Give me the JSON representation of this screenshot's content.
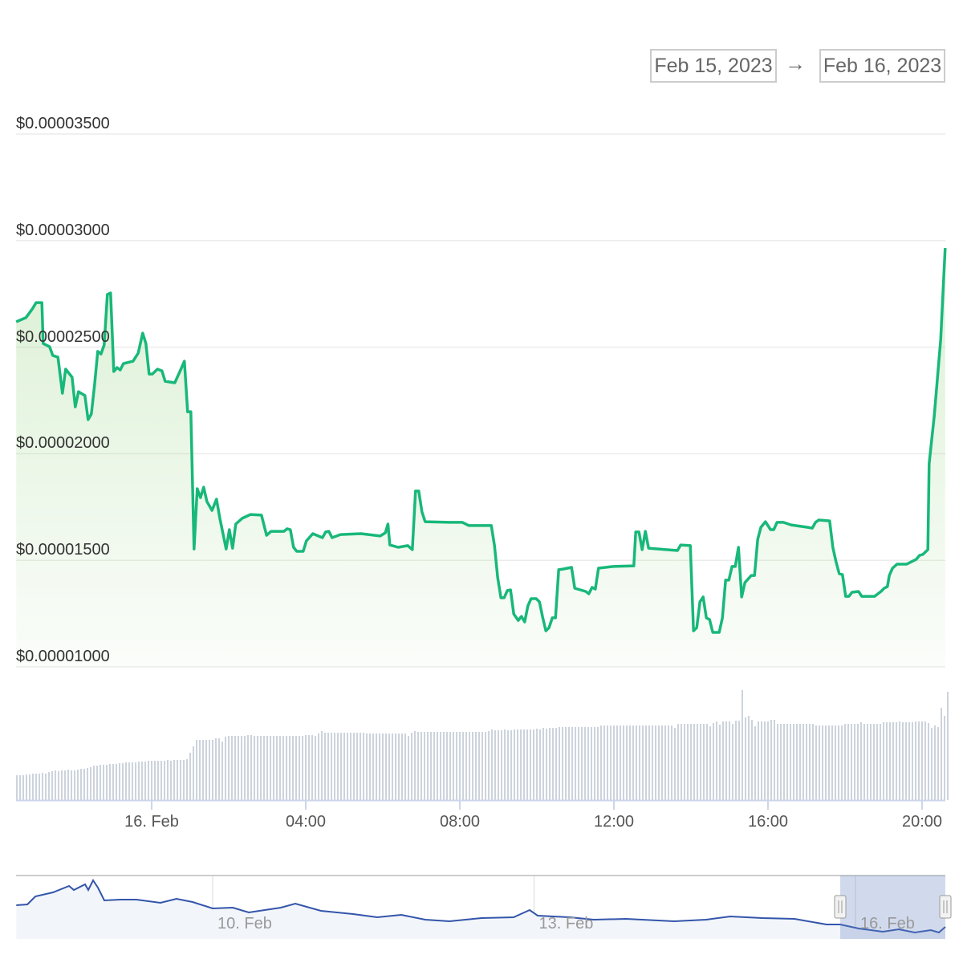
{
  "date_range": {
    "from": "Feb 15, 2023",
    "arrow": "→",
    "to": "Feb 16, 2023"
  },
  "colors": {
    "line": "#18b87a",
    "area": "#8fd07a",
    "volume": "#ccd3dc",
    "navigator_line": "#3355aa",
    "navigator_selection": "#d3d9ee"
  },
  "chart_data": {
    "type": "line",
    "y_tick_labels": [
      "$0.00001000",
      "$0.00001500",
      "$0.00002000",
      "$0.00002500",
      "$0.00003000",
      "$0.00003500"
    ],
    "y_ticks": [
      1e-05,
      1.5e-05,
      2e-05,
      2.5e-05,
      3e-05,
      3.5e-05
    ],
    "ylim": [
      1e-05,
      3.5e-05
    ],
    "x_tick_labels": [
      "16. Feb",
      "04:00",
      "08:00",
      "12:00",
      "16:00",
      "20:00"
    ],
    "x_ticks": [
      "2023-02-16T00:00",
      "2023-02-16T04:00",
      "2023-02-16T08:00",
      "2023-02-16T12:00",
      "2023-02-16T16:00",
      "2023-02-16T20:00"
    ],
    "grid": true,
    "area_fill": true,
    "price": [
      [
        "2023-02-15T20:29",
        2.619e-05
      ],
      [
        "2023-02-15T20:44",
        2.638e-05
      ],
      [
        "2023-02-15T20:54",
        2.679e-05
      ],
      [
        "2023-02-15T21:00",
        2.709e-05
      ],
      [
        "2023-02-15T21:09",
        2.709e-05
      ],
      [
        "2023-02-15T21:11",
        2.517e-05
      ],
      [
        "2023-02-15T21:21",
        2.502e-05
      ],
      [
        "2023-02-15T21:26",
        2.461e-05
      ],
      [
        "2023-02-15T21:34",
        2.453e-05
      ],
      [
        "2023-02-15T21:41",
        2.284e-05
      ],
      [
        "2023-02-15T21:46",
        2.397e-05
      ],
      [
        "2023-02-15T21:56",
        2.359e-05
      ],
      [
        "2023-02-15T22:01",
        2.22e-05
      ],
      [
        "2023-02-15T22:06",
        2.291e-05
      ],
      [
        "2023-02-15T22:16",
        2.273e-05
      ],
      [
        "2023-02-15T22:21",
        2.16e-05
      ],
      [
        "2023-02-15T22:26",
        2.186e-05
      ],
      [
        "2023-02-15T22:31",
        2.322e-05
      ],
      [
        "2023-02-15T22:36",
        2.48e-05
      ],
      [
        "2023-02-15T22:41",
        2.468e-05
      ],
      [
        "2023-02-15T22:46",
        2.51e-05
      ],
      [
        "2023-02-15T22:51",
        2.747e-05
      ],
      [
        "2023-02-15T22:56",
        2.754e-05
      ],
      [
        "2023-02-15T23:01",
        2.386e-05
      ],
      [
        "2023-02-15T23:06",
        2.404e-05
      ],
      [
        "2023-02-15T23:11",
        2.393e-05
      ],
      [
        "2023-02-15T23:16",
        2.423e-05
      ],
      [
        "2023-02-15T23:31",
        2.434e-05
      ],
      [
        "2023-02-15T23:39",
        2.472e-05
      ],
      [
        "2023-02-15T23:46",
        2.566e-05
      ],
      [
        "2023-02-15T23:51",
        2.517e-05
      ],
      [
        "2023-02-15T23:56",
        2.374e-05
      ],
      [
        "2023-02-16T00:01",
        2.374e-05
      ],
      [
        "2023-02-16T00:09",
        2.397e-05
      ],
      [
        "2023-02-16T00:16",
        2.389e-05
      ],
      [
        "2023-02-16T00:21",
        2.34e-05
      ],
      [
        "2023-02-16T00:36",
        2.333e-05
      ],
      [
        "2023-02-16T00:44",
        2.386e-05
      ],
      [
        "2023-02-16T00:51",
        2.434e-05
      ],
      [
        "2023-02-16T00:56",
        2.197e-05
      ],
      [
        "2023-02-16T01:01",
        2.197e-05
      ],
      [
        "2023-02-16T01:06",
        1.553e-05
      ],
      [
        "2023-02-16T01:11",
        1.836e-05
      ],
      [
        "2023-02-16T01:16",
        1.794e-05
      ],
      [
        "2023-02-16T01:21",
        1.843e-05
      ],
      [
        "2023-02-16T01:26",
        1.776e-05
      ],
      [
        "2023-02-16T01:34",
        1.734e-05
      ],
      [
        "2023-02-16T01:41",
        1.787e-05
      ],
      [
        "2023-02-16T01:46",
        1.7e-05
      ],
      [
        "2023-02-16T01:56",
        1.553e-05
      ],
      [
        "2023-02-16T02:01",
        1.644e-05
      ],
      [
        "2023-02-16T02:06",
        1.557e-05
      ],
      [
        "2023-02-16T02:11",
        1.67e-05
      ],
      [
        "2023-02-16T02:21",
        1.697e-05
      ],
      [
        "2023-02-16T02:34",
        1.715e-05
      ],
      [
        "2023-02-16T02:51",
        1.712e-05
      ],
      [
        "2023-02-16T02:59",
        1.617e-05
      ],
      [
        "2023-02-16T03:06",
        1.636e-05
      ],
      [
        "2023-02-16T03:26",
        1.636e-05
      ],
      [
        "2023-02-16T03:31",
        1.648e-05
      ],
      [
        "2023-02-16T03:36",
        1.644e-05
      ],
      [
        "2023-02-16T03:41",
        1.561e-05
      ],
      [
        "2023-02-16T03:46",
        1.542e-05
      ],
      [
        "2023-02-16T03:56",
        1.542e-05
      ],
      [
        "2023-02-16T04:01",
        1.591e-05
      ],
      [
        "2023-02-16T04:11",
        1.625e-05
      ],
      [
        "2023-02-16T04:26",
        1.606e-05
      ],
      [
        "2023-02-16T04:31",
        1.633e-05
      ],
      [
        "2023-02-16T04:36",
        1.636e-05
      ],
      [
        "2023-02-16T04:41",
        1.606e-05
      ],
      [
        "2023-02-16T04:54",
        1.621e-05
      ],
      [
        "2023-02-16T05:26",
        1.625e-05
      ],
      [
        "2023-02-16T05:56",
        1.614e-05
      ],
      [
        "2023-02-16T06:04",
        1.629e-05
      ],
      [
        "2023-02-16T06:08",
        1.67e-05
      ],
      [
        "2023-02-16T06:11",
        1.572e-05
      ],
      [
        "2023-02-16T06:24",
        1.561e-05
      ],
      [
        "2023-02-16T06:39",
        1.569e-05
      ],
      [
        "2023-02-16T06:46",
        1.55e-05
      ],
      [
        "2023-02-16T06:51",
        1.825e-05
      ],
      [
        "2023-02-16T06:56",
        1.825e-05
      ],
      [
        "2023-02-16T07:01",
        1.727e-05
      ],
      [
        "2023-02-16T07:06",
        1.681e-05
      ],
      [
        "2023-02-16T07:44",
        1.678e-05
      ],
      [
        "2023-02-16T08:04",
        1.678e-05
      ],
      [
        "2023-02-16T08:14",
        1.663e-05
      ],
      [
        "2023-02-16T08:49",
        1.663e-05
      ],
      [
        "2023-02-16T08:54",
        1.569e-05
      ],
      [
        "2023-02-16T08:59",
        1.418e-05
      ],
      [
        "2023-02-16T09:04",
        1.324e-05
      ],
      [
        "2023-02-16T09:09",
        1.324e-05
      ],
      [
        "2023-02-16T09:14",
        1.358e-05
      ],
      [
        "2023-02-16T09:19",
        1.361e-05
      ],
      [
        "2023-02-16T09:24",
        1.248e-05
      ],
      [
        "2023-02-16T09:31",
        1.218e-05
      ],
      [
        "2023-02-16T09:36",
        1.237e-05
      ],
      [
        "2023-02-16T09:41",
        1.211e-05
      ],
      [
        "2023-02-16T09:46",
        1.286e-05
      ],
      [
        "2023-02-16T09:51",
        1.32e-05
      ],
      [
        "2023-02-16T09:59",
        1.32e-05
      ],
      [
        "2023-02-16T10:04",
        1.305e-05
      ],
      [
        "2023-02-16T10:09",
        1.233e-05
      ],
      [
        "2023-02-16T10:14",
        1.169e-05
      ],
      [
        "2023-02-16T10:19",
        1.184e-05
      ],
      [
        "2023-02-16T10:24",
        1.23e-05
      ],
      [
        "2023-02-16T10:29",
        1.23e-05
      ],
      [
        "2023-02-16T10:34",
        1.456e-05
      ],
      [
        "2023-02-16T10:41",
        1.459e-05
      ],
      [
        "2023-02-16T10:54",
        1.467e-05
      ],
      [
        "2023-02-16T10:59",
        1.369e-05
      ],
      [
        "2023-02-16T11:16",
        1.354e-05
      ],
      [
        "2023-02-16T11:21",
        1.343e-05
      ],
      [
        "2023-02-16T11:26",
        1.373e-05
      ],
      [
        "2023-02-16T11:31",
        1.365e-05
      ],
      [
        "2023-02-16T11:36",
        1.463e-05
      ],
      [
        "2023-02-16T11:59",
        1.471e-05
      ],
      [
        "2023-02-16T12:31",
        1.474e-05
      ],
      [
        "2023-02-16T12:34",
        1.633e-05
      ],
      [
        "2023-02-16T12:39",
        1.633e-05
      ],
      [
        "2023-02-16T12:44",
        1.55e-05
      ],
      [
        "2023-02-16T12:49",
        1.636e-05
      ],
      [
        "2023-02-16T12:54",
        1.557e-05
      ],
      [
        "2023-02-16T13:21",
        1.55e-05
      ],
      [
        "2023-02-16T13:39",
        1.546e-05
      ],
      [
        "2023-02-16T13:44",
        1.572e-05
      ],
      [
        "2023-02-16T13:59",
        1.569e-05
      ],
      [
        "2023-02-16T14:04",
        1.169e-05
      ],
      [
        "2023-02-16T14:09",
        1.184e-05
      ],
      [
        "2023-02-16T14:14",
        1.305e-05
      ],
      [
        "2023-02-16T14:19",
        1.328e-05
      ],
      [
        "2023-02-16T14:24",
        1.23e-05
      ],
      [
        "2023-02-16T14:29",
        1.222e-05
      ],
      [
        "2023-02-16T14:34",
        1.162e-05
      ],
      [
        "2023-02-16T14:44",
        1.162e-05
      ],
      [
        "2023-02-16T14:49",
        1.23e-05
      ],
      [
        "2023-02-16T14:54",
        1.407e-05
      ],
      [
        "2023-02-16T14:59",
        1.407e-05
      ],
      [
        "2023-02-16T15:04",
        1.471e-05
      ],
      [
        "2023-02-16T15:09",
        1.471e-05
      ],
      [
        "2023-02-16T15:14",
        1.561e-05
      ],
      [
        "2023-02-16T15:19",
        1.328e-05
      ],
      [
        "2023-02-16T15:24",
        1.395e-05
      ],
      [
        "2023-02-16T15:34",
        1.429e-05
      ],
      [
        "2023-02-16T15:39",
        1.429e-05
      ],
      [
        "2023-02-16T15:44",
        1.599e-05
      ],
      [
        "2023-02-16T15:49",
        1.655e-05
      ],
      [
        "2023-02-16T15:56",
        1.681e-05
      ],
      [
        "2023-02-16T16:04",
        1.644e-05
      ],
      [
        "2023-02-16T16:09",
        1.644e-05
      ],
      [
        "2023-02-16T16:14",
        1.678e-05
      ],
      [
        "2023-02-16T16:24",
        1.678e-05
      ],
      [
        "2023-02-16T16:36",
        1.666e-05
      ],
      [
        "2023-02-16T17:01",
        1.655e-05
      ],
      [
        "2023-02-16T17:09",
        1.651e-05
      ],
      [
        "2023-02-16T17:14",
        1.678e-05
      ],
      [
        "2023-02-16T17:19",
        1.689e-05
      ],
      [
        "2023-02-16T17:36",
        1.685e-05
      ],
      [
        "2023-02-16T17:41",
        1.561e-05
      ],
      [
        "2023-02-16T17:46",
        1.493e-05
      ],
      [
        "2023-02-16T17:51",
        1.437e-05
      ],
      [
        "2023-02-16T17:56",
        1.433e-05
      ],
      [
        "2023-02-16T18:01",
        1.331e-05
      ],
      [
        "2023-02-16T18:06",
        1.331e-05
      ],
      [
        "2023-02-16T18:11",
        1.35e-05
      ],
      [
        "2023-02-16T18:21",
        1.354e-05
      ],
      [
        "2023-02-16T18:26",
        1.331e-05
      ],
      [
        "2023-02-16T18:46",
        1.331e-05
      ],
      [
        "2023-02-16T18:56",
        1.354e-05
      ],
      [
        "2023-02-16T19:01",
        1.369e-05
      ],
      [
        "2023-02-16T19:06",
        1.377e-05
      ],
      [
        "2023-02-16T19:09",
        1.429e-05
      ],
      [
        "2023-02-16T19:14",
        1.463e-05
      ],
      [
        "2023-02-16T19:21",
        1.482e-05
      ],
      [
        "2023-02-16T19:36",
        1.482e-05
      ],
      [
        "2023-02-16T19:51",
        1.505e-05
      ],
      [
        "2023-02-16T19:56",
        1.523e-05
      ],
      [
        "2023-02-16T20:01",
        1.527e-05
      ],
      [
        "2023-02-16T20:09",
        1.55e-05
      ],
      [
        "2023-02-16T20:11",
        1.953e-05
      ],
      [
        "2023-02-16T20:19",
        2.178e-05
      ],
      [
        "2023-02-16T20:29",
        2.536e-05
      ],
      [
        "2023-02-16T20:36",
        2.965e-05
      ]
    ],
    "volume_relative": [
      31,
      31,
      31,
      32,
      32,
      33,
      33,
      33,
      34,
      33,
      35,
      36,
      37,
      36,
      37,
      37,
      38,
      37,
      37,
      38,
      39,
      39,
      40,
      41,
      43,
      43,
      44,
      44,
      44,
      45,
      45,
      45,
      46,
      46,
      47,
      47,
      47,
      47,
      48,
      48,
      48,
      49,
      49,
      49,
      49,
      49,
      49,
      50,
      49,
      50,
      50,
      50,
      50,
      51,
      59,
      67,
      75,
      75,
      75,
      75,
      75,
      75,
      77,
      77,
      73,
      79,
      80,
      80,
      80,
      80,
      80,
      80,
      81,
      81,
      80,
      80,
      80,
      80,
      80,
      80,
      80,
      80,
      80,
      80,
      80,
      80,
      80,
      80,
      80,
      80,
      81,
      81,
      81,
      80,
      83,
      86,
      84,
      84,
      84,
      84,
      84,
      84,
      84,
      84,
      84,
      84,
      84,
      84,
      84,
      83,
      83,
      83,
      83,
      83,
      83,
      83,
      83,
      83,
      83,
      83,
      83,
      83,
      80,
      84,
      86,
      85,
      85,
      85,
      85,
      85,
      85,
      85,
      85,
      85,
      85,
      85,
      85,
      85,
      85,
      85,
      85,
      85,
      85,
      85,
      85,
      85,
      85,
      86,
      88,
      87,
      87,
      87,
      88,
      87,
      87,
      88,
      88,
      88,
      88,
      88,
      88,
      88,
      89,
      88,
      90,
      89,
      90,
      90,
      90,
      91,
      91,
      91,
      91,
      91,
      91,
      91,
      91,
      91,
      91,
      91,
      91,
      91,
      93,
      93,
      93,
      93,
      93,
      93,
      93,
      93,
      93,
      93,
      93,
      93,
      93,
      93,
      93,
      93,
      93,
      93,
      93,
      93,
      93,
      93,
      93,
      90,
      95,
      95,
      95,
      95,
      95,
      95,
      95,
      95,
      95,
      95,
      92,
      96,
      98,
      94,
      98,
      98,
      98,
      95,
      99,
      99,
      137,
      103,
      105,
      100,
      92,
      98,
      98,
      98,
      98,
      100,
      100,
      95,
      95,
      95,
      95,
      95,
      95,
      95,
      95,
      95,
      95,
      95,
      95,
      93,
      93,
      93,
      93,
      93,
      93,
      93,
      93,
      93,
      95,
      95,
      95,
      95,
      95,
      97,
      95,
      95,
      95,
      95,
      95,
      95,
      97,
      97,
      97,
      97,
      97,
      98,
      97,
      97,
      97,
      97,
      98,
      98,
      98,
      98,
      96,
      90,
      93,
      91,
      115,
      105,
      135
    ]
  },
  "navigator": {
    "labels": [
      "10. Feb",
      "13. Feb",
      "16. Feb"
    ],
    "label_dates": [
      "2023-02-10T00:00",
      "2023-02-13T00:00",
      "2023-02-16T00:00"
    ],
    "selection": [
      "2023-02-15T20:29",
      "2023-02-16T20:36"
    ],
    "series_relative": [
      [
        "2023-02-08T04:00",
        47
      ],
      [
        "2023-02-08T06:29",
        48
      ],
      [
        "2023-02-08T08:17",
        58
      ],
      [
        "2023-02-08T12:14",
        63
      ],
      [
        "2023-02-08T15:50",
        71
      ],
      [
        "2023-02-08T16:54",
        66
      ],
      [
        "2023-02-08T19:25",
        73
      ],
      [
        "2023-02-08T20:08",
        66
      ],
      [
        "2023-02-08T21:13",
        78
      ],
      [
        "2023-02-08T22:17",
        69
      ],
      [
        "2023-02-08T23:44",
        53
      ],
      [
        "2023-02-09T03:20",
        54
      ],
      [
        "2023-02-09T06:55",
        54
      ],
      [
        "2023-02-09T12:18",
        50
      ],
      [
        "2023-02-09T15:54",
        55
      ],
      [
        "2023-02-09T19:30",
        51
      ],
      [
        "2023-02-10T00:00",
        43
      ],
      [
        "2023-02-10T04:30",
        44
      ],
      [
        "2023-02-10T08:05",
        38
      ],
      [
        "2023-02-10T15:17",
        44
      ],
      [
        "2023-02-10T18:31",
        49
      ],
      [
        "2023-02-11T00:16",
        40
      ],
      [
        "2023-02-11T07:28",
        36
      ],
      [
        "2023-02-11T12:52",
        32
      ],
      [
        "2023-02-11T18:15",
        35
      ],
      [
        "2023-02-11T23:38",
        29
      ],
      [
        "2023-02-12T05:02",
        27
      ],
      [
        "2023-02-12T12:14",
        31
      ],
      [
        "2023-02-12T19:25",
        32
      ],
      [
        "2023-02-12T23:01",
        41
      ],
      [
        "2023-02-13T00:49",
        34
      ],
      [
        "2023-02-13T08:00",
        32
      ],
      [
        "2023-02-13T13:24",
        29
      ],
      [
        "2023-02-13T20:36",
        30
      ],
      [
        "2023-02-14T07:22",
        27
      ],
      [
        "2023-02-14T14:34",
        29
      ],
      [
        "2023-02-14T19:57",
        33
      ],
      [
        "2023-02-15T03:09",
        31
      ],
      [
        "2023-02-15T10:20",
        30
      ],
      [
        "2023-02-15T17:31",
        23
      ],
      [
        "2023-02-15T20:35",
        23
      ],
      [
        "2023-02-16T00:43",
        18
      ],
      [
        "2023-02-16T06:07",
        14
      ],
      [
        "2023-02-16T09:42",
        17
      ],
      [
        "2023-02-16T13:18",
        13
      ],
      [
        "2023-02-16T16:54",
        16
      ],
      [
        "2023-02-16T18:41",
        13
      ],
      [
        "2023-02-16T20:08",
        20
      ]
    ]
  }
}
